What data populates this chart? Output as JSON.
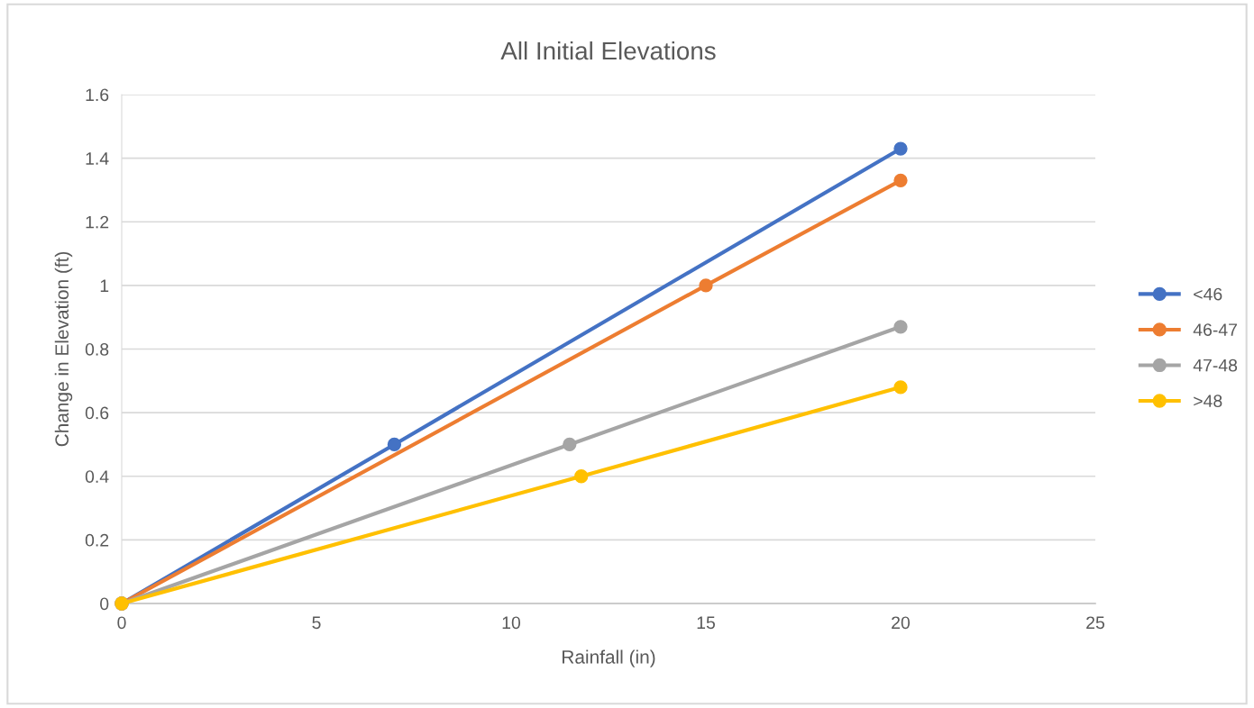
{
  "chart_data": {
    "type": "line",
    "title": "All Initial Elevations",
    "xlabel": "Rainfall (in)",
    "ylabel": "Change in Elevation (ft)",
    "xlim": [
      0,
      25
    ],
    "xticks": [
      0,
      5,
      10,
      15,
      20,
      25
    ],
    "ylim": [
      0,
      1.6
    ],
    "yticks": [
      0,
      {
        "value": 0.2,
        "label": "0.2"
      },
      {
        "value": 0.4,
        "label": "0.4"
      },
      {
        "value": 0.6,
        "label": "0.6"
      },
      {
        "value": 0.8,
        "label": "0.8"
      },
      1,
      {
        "value": 1.2,
        "label": "1.2"
      },
      {
        "value": 1.4,
        "label": "1.4"
      },
      {
        "value": 1.6,
        "label": "1.6"
      }
    ],
    "grid": "y",
    "legend": "right",
    "marker": "circle",
    "line_style": "solid",
    "series": [
      {
        "name": "<46",
        "color": "#4472c4",
        "x": [
          0,
          7,
          20
        ],
        "values": [
          0,
          0.5,
          1.43
        ]
      },
      {
        "name": "46-47",
        "color": "#ed7d31",
        "x": [
          0,
          15,
          20
        ],
        "values": [
          0,
          1.0,
          1.33
        ]
      },
      {
        "name": "47-48",
        "color": "#a5a5a5",
        "x": [
          0,
          11.5,
          20
        ],
        "values": [
          0,
          0.5,
          0.87
        ]
      },
      {
        "name": ">48",
        "color": "#ffc000",
        "x": [
          0,
          11.8,
          20
        ],
        "values": [
          0,
          0.4,
          0.68
        ]
      }
    ]
  }
}
